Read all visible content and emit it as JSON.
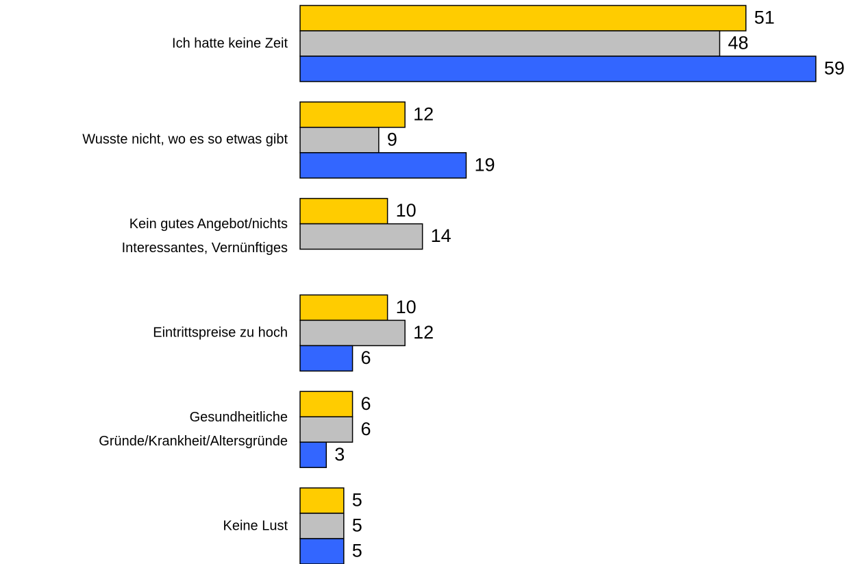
{
  "chart_data": {
    "type": "barh",
    "categories": [
      "Ich hatte keine Zeit",
      "Wusste nicht, wo es so etwas gibt",
      "Kein gutes Angebot/nichts\nInteressantes, Vernünftiges",
      "Eintrittspreise zu hoch",
      "Gesundheitliche\nGründe/Krankheit/Altersgründe",
      "Keine Lust"
    ],
    "series": [
      {
        "color": "#FFCC00",
        "values": [
          51,
          12,
          10,
          10,
          6,
          5
        ]
      },
      {
        "color": "#C0C0C0",
        "values": [
          48,
          9,
          14,
          12,
          6,
          5
        ]
      },
      {
        "color": "#3366FF",
        "values": [
          59,
          19,
          null,
          6,
          3,
          5
        ]
      }
    ],
    "xlim": [
      0,
      60
    ]
  }
}
